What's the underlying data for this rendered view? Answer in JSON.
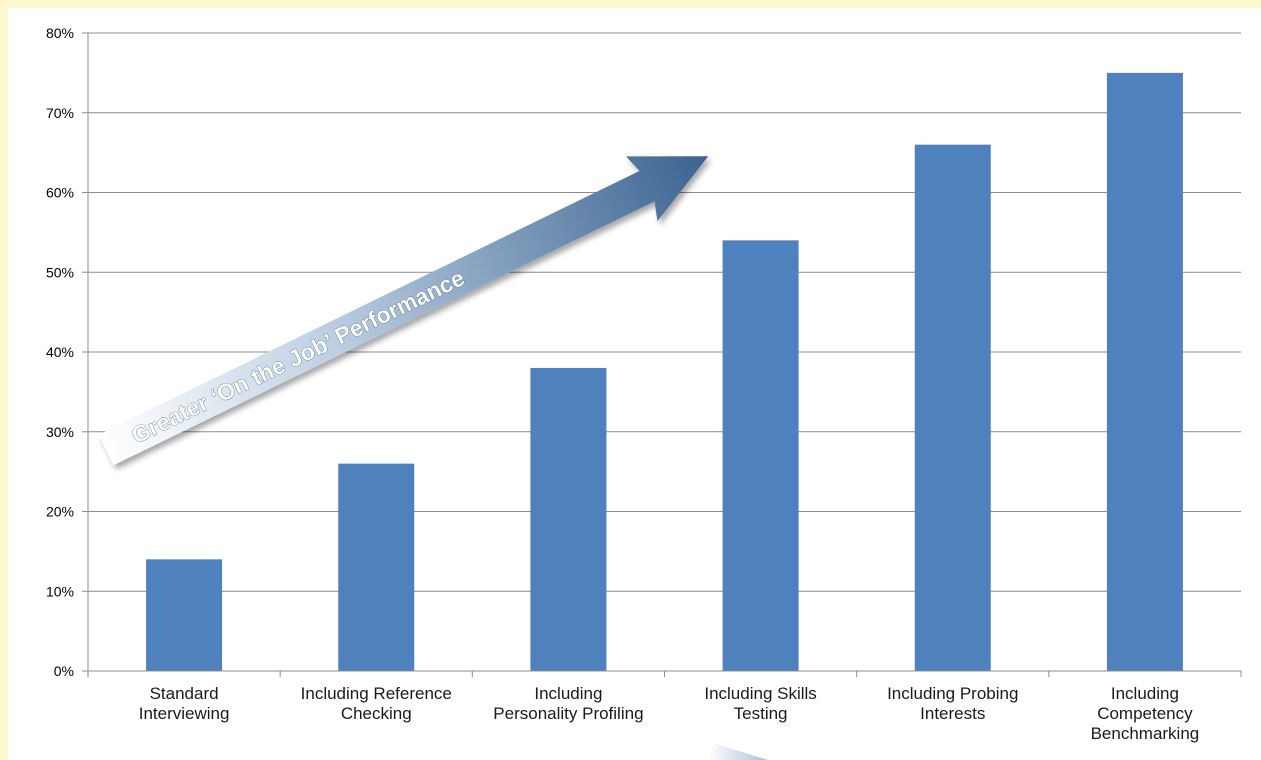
{
  "chart_data": {
    "type": "bar",
    "categories": [
      [
        "Standard",
        "Interviewing"
      ],
      [
        "Including Reference",
        "Checking"
      ],
      [
        "Including",
        "Personality Profiling"
      ],
      [
        "Including Skills",
        "Testing"
      ],
      [
        "Including Probing",
        "Interests"
      ],
      [
        "Including",
        "Competency",
        "Benchmarking"
      ]
    ],
    "values": [
      14,
      26,
      38,
      54,
      66,
      75
    ],
    "ylim": [
      0,
      80
    ],
    "yticks": [
      0,
      10,
      20,
      30,
      40,
      50,
      60,
      70,
      80
    ],
    "y_tick_suffix": "%",
    "grid": true,
    "title": "",
    "xlabel": "",
    "ylabel": "",
    "bar_color": "#4f81bd"
  },
  "annotation": {
    "arrow_text": "Greater ‘On the Job’ Performance",
    "arrow_color": "#3d6593"
  },
  "colors": {
    "page_background": "#fdf6cf",
    "grid_line": "#8c8c8c"
  }
}
